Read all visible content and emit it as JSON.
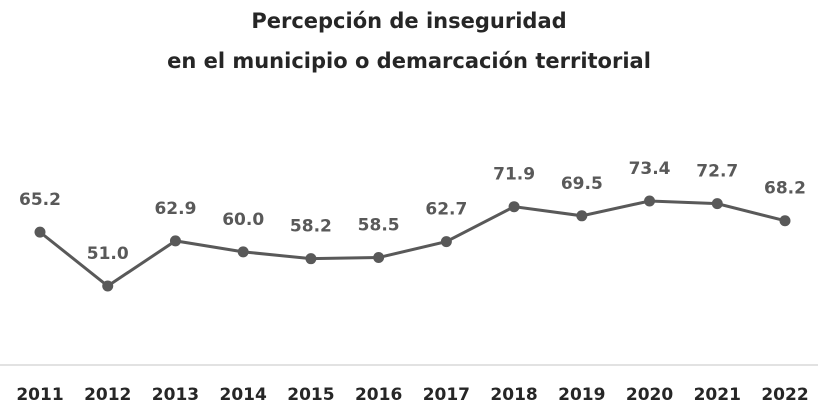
{
  "chart_data": {
    "type": "line",
    "title": [
      "Percepción de inseguridad",
      "en el municipio o demarcación territorial"
    ],
    "categories": [
      "2011",
      "2012",
      "2013",
      "2014",
      "2015",
      "2016",
      "2017",
      "2018",
      "2019",
      "2020",
      "2021",
      "2022"
    ],
    "values": [
      65.2,
      51.0,
      62.9,
      60.0,
      58.2,
      58.5,
      62.7,
      71.9,
      69.5,
      73.4,
      72.7,
      68.2
    ],
    "value_labels": [
      "65.2",
      "51.0",
      "62.9",
      "60.0",
      "58.2",
      "58.5",
      "62.7",
      "71.9",
      "69.5",
      "73.4",
      "72.7",
      "68.2"
    ],
    "color": "#595959"
  }
}
